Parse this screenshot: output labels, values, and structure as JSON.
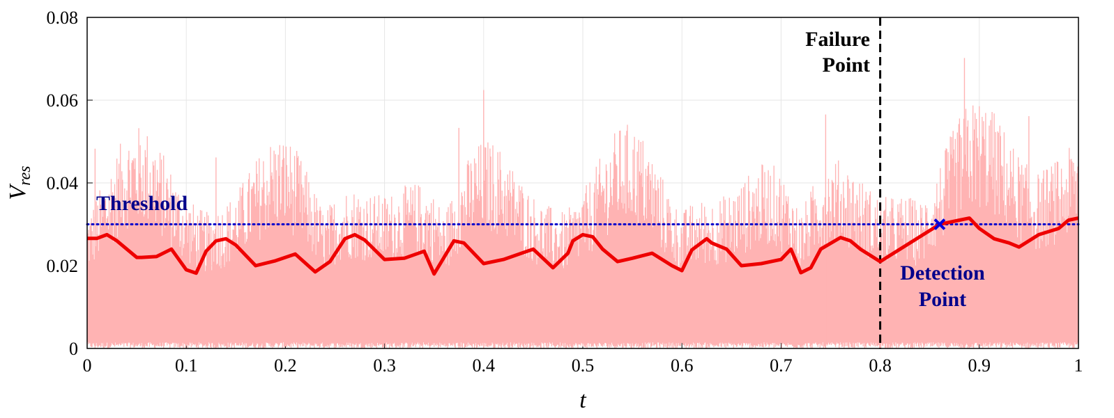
{
  "chart_data": {
    "type": "line",
    "xlabel": "t",
    "ylabel": {
      "main": "V",
      "sub": "res"
    },
    "xlim": [
      0,
      1
    ],
    "ylim": [
      0,
      0.08
    ],
    "xticks": [
      "0",
      "0.1",
      "0.2",
      "0.3",
      "0.4",
      "0.5",
      "0.6",
      "0.7",
      "0.8",
      "0.9",
      "1"
    ],
    "yticks": [
      "0",
      "0.02",
      "0.04",
      "0.06",
      "0.08"
    ],
    "grid": true,
    "colors": {
      "raw": "#ffb3b3",
      "smoothed": "#ee0000",
      "threshold": "#0000cc",
      "failure": "#000000",
      "annotation_blue": "#00008b"
    },
    "threshold": {
      "label": "Threshold",
      "y": 0.03
    },
    "failure_point": {
      "label_line1": "Failure",
      "label_line2": "Point",
      "x": 0.8
    },
    "detection_point": {
      "label_line1": "Detection",
      "label_line2": "Point",
      "x": 0.86,
      "y": 0.03,
      "marker": "x"
    },
    "series": [
      {
        "style": "smoothed-line",
        "x": [
          0,
          0.01,
          0.02,
          0.03,
          0.05,
          0.055,
          0.07,
          0.085,
          0.1,
          0.11,
          0.12,
          0.13,
          0.14,
          0.15,
          0.17,
          0.19,
          0.21,
          0.23,
          0.245,
          0.26,
          0.27,
          0.28,
          0.3,
          0.32,
          0.34,
          0.35,
          0.36,
          0.37,
          0.38,
          0.4,
          0.42,
          0.45,
          0.47,
          0.485,
          0.49,
          0.5,
          0.51,
          0.52,
          0.535,
          0.55,
          0.57,
          0.59,
          0.6,
          0.61,
          0.625,
          0.63,
          0.645,
          0.66,
          0.68,
          0.7,
          0.71,
          0.72,
          0.73,
          0.74,
          0.76,
          0.77,
          0.78,
          0.8,
          0.82,
          0.84,
          0.86,
          0.87,
          0.88,
          0.89,
          0.9,
          0.915,
          0.93,
          0.94,
          0.96,
          0.98,
          0.99,
          1.0
        ],
        "y": [
          0.0266,
          0.0266,
          0.0275,
          0.026,
          0.022,
          0.022,
          0.0222,
          0.024,
          0.019,
          0.0182,
          0.0235,
          0.026,
          0.0265,
          0.025,
          0.02,
          0.0212,
          0.0228,
          0.0185,
          0.021,
          0.0265,
          0.0275,
          0.0262,
          0.0215,
          0.0218,
          0.0235,
          0.018,
          0.022,
          0.026,
          0.0255,
          0.0205,
          0.0215,
          0.024,
          0.0195,
          0.023,
          0.026,
          0.0275,
          0.027,
          0.024,
          0.021,
          0.0218,
          0.023,
          0.02,
          0.0188,
          0.0238,
          0.0265,
          0.0255,
          0.024,
          0.02,
          0.0205,
          0.0215,
          0.024,
          0.0183,
          0.0195,
          0.024,
          0.0268,
          0.026,
          0.024,
          0.021,
          0.024,
          0.027,
          0.03,
          0.0305,
          0.031,
          0.0315,
          0.029,
          0.0265,
          0.0255,
          0.0245,
          0.0275,
          0.029,
          0.031,
          0.0315
        ]
      }
    ]
  }
}
